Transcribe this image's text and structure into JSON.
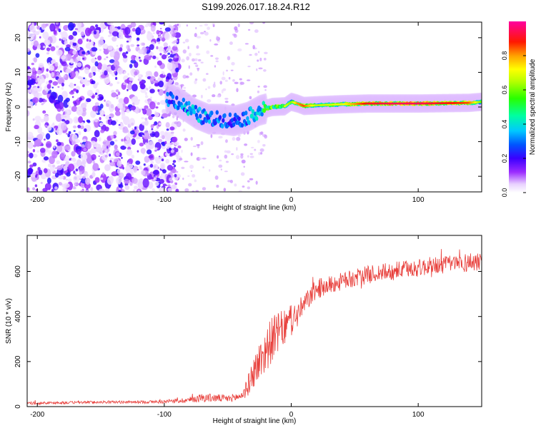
{
  "chart_data": [
    {
      "type": "heatmap",
      "title": "S199.2026.017.18.24.R12",
      "xlabel": "Height of straight line (km)",
      "ylabel": "Frequency (Hz)",
      "xlim": [
        -208,
        150
      ],
      "ylim": [
        -24.5,
        24.5
      ],
      "xticks": [
        -200,
        -100,
        0,
        100
      ],
      "yticks": [
        -20,
        -10,
        0,
        10,
        20
      ],
      "colorbar": {
        "label": "Normalized spectral amplitude",
        "range": [
          0.0,
          1.0
        ],
        "ticks": [
          0.0,
          0.2,
          0.4,
          0.6,
          0.8
        ],
        "tick_labels": [
          "0.0",
          "0.2",
          "0.4",
          "0.6",
          "0.8"
        ],
        "colormap": "rainbow (white-violet-blue-cyan-green-yellow-red-magenta)"
      },
      "ridge": {
        "x": [
          -95,
          -85,
          -75,
          -65,
          -55,
          -45,
          -35,
          -25,
          -15,
          -5,
          0,
          5,
          10,
          20,
          40,
          60,
          80,
          100,
          120,
          140,
          150
        ],
        "frequency": [
          2.5,
          0.5,
          -2.0,
          -3.5,
          -3.5,
          -4.0,
          -3.0,
          -1.0,
          0.0,
          0.2,
          1.5,
          1.0,
          0.3,
          0.5,
          0.8,
          1.0,
          1.0,
          1.0,
          1.1,
          1.2,
          1.5
        ],
        "amplitude": [
          0.35,
          0.4,
          0.45,
          0.4,
          0.35,
          0.3,
          0.4,
          0.5,
          0.7,
          0.6,
          0.5,
          0.7,
          0.75,
          0.55,
          0.6,
          0.8,
          0.85,
          0.85,
          0.8,
          0.75,
          0.5
        ]
      },
      "noise_region_x": [
        -208,
        -88
      ]
    },
    {
      "type": "line",
      "xlabel": "Height of straight line (km)",
      "ylabel": "SNR (10 * v/v)",
      "xlim": [
        -208,
        150
      ],
      "ylim": [
        0,
        760
      ],
      "xticks": [
        -200,
        -100,
        0,
        100
      ],
      "yticks": [
        0,
        200,
        400,
        600
      ],
      "color": "#e8403c",
      "series": [
        {
          "name": "SNR",
          "x": [
            -208,
            -180,
            -150,
            -120,
            -100,
            -90,
            -80,
            -70,
            -60,
            -50,
            -40,
            -35,
            -30,
            -25,
            -20,
            -15,
            -10,
            -5,
            0,
            5,
            10,
            15,
            20,
            30,
            40,
            50,
            60,
            70,
            80,
            90,
            100,
            110,
            120,
            130,
            140,
            150
          ],
          "y": [
            15,
            17,
            20,
            20,
            22,
            25,
            30,
            40,
            38,
            35,
            45,
            80,
            150,
            200,
            250,
            300,
            330,
            350,
            380,
            410,
            450,
            490,
            520,
            540,
            555,
            570,
            585,
            595,
            600,
            610,
            615,
            625,
            630,
            635,
            640,
            650
          ],
          "noise": [
            6,
            6,
            6,
            6,
            8,
            10,
            14,
            20,
            18,
            16,
            20,
            40,
            70,
            90,
            100,
            100,
            90,
            80,
            70,
            60,
            50,
            45,
            45,
            40,
            40,
            40,
            40,
            40,
            40,
            40,
            40,
            40,
            40,
            40,
            45,
            45
          ]
        }
      ]
    }
  ]
}
